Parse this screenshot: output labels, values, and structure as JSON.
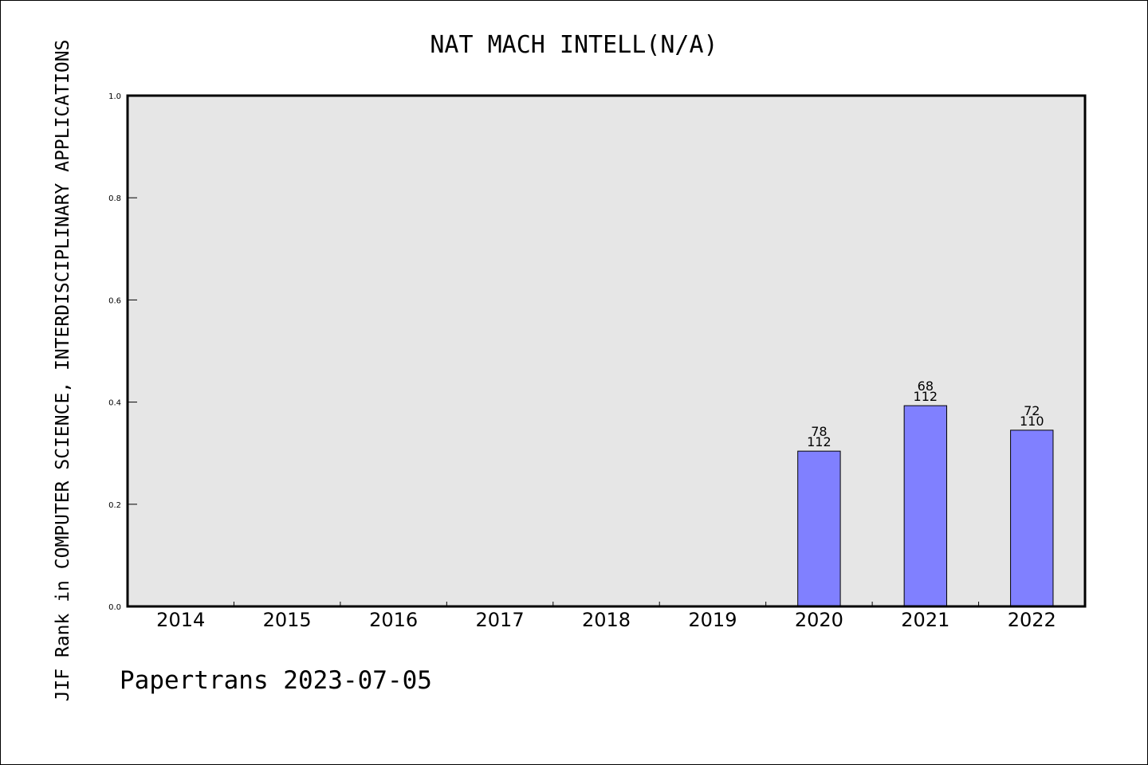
{
  "chart_data": {
    "type": "bar",
    "title": "NAT MACH INTELL(N/A)",
    "xlabel": "",
    "ylabel": "JIF Rank in COMPUTER SCIENCE, INTERDISCIPLINARY APPLICATIONS",
    "ylim": [
      0,
      1.0
    ],
    "yticks": [
      "0.0",
      "0.2",
      "0.4",
      "0.6",
      "0.8",
      "1.0"
    ],
    "grid": false,
    "categories": [
      "2014",
      "2015",
      "2016",
      "2017",
      "2018",
      "2019",
      "2020",
      "2021",
      "2022"
    ],
    "values": [
      null,
      null,
      null,
      null,
      null,
      null,
      0.304,
      0.393,
      0.345
    ],
    "bar_labels": [
      null,
      null,
      null,
      null,
      null,
      null,
      {
        "rank": "78",
        "total": "112"
      },
      {
        "rank": "68",
        "total": "112"
      },
      {
        "rank": "72",
        "total": "110"
      }
    ],
    "colors": {
      "bar_fill": "#8080ff",
      "bar_stroke": "#000000",
      "plot_background": "#e6e6e6"
    }
  },
  "footer": {
    "text": "Papertrans 2023-07-05"
  }
}
